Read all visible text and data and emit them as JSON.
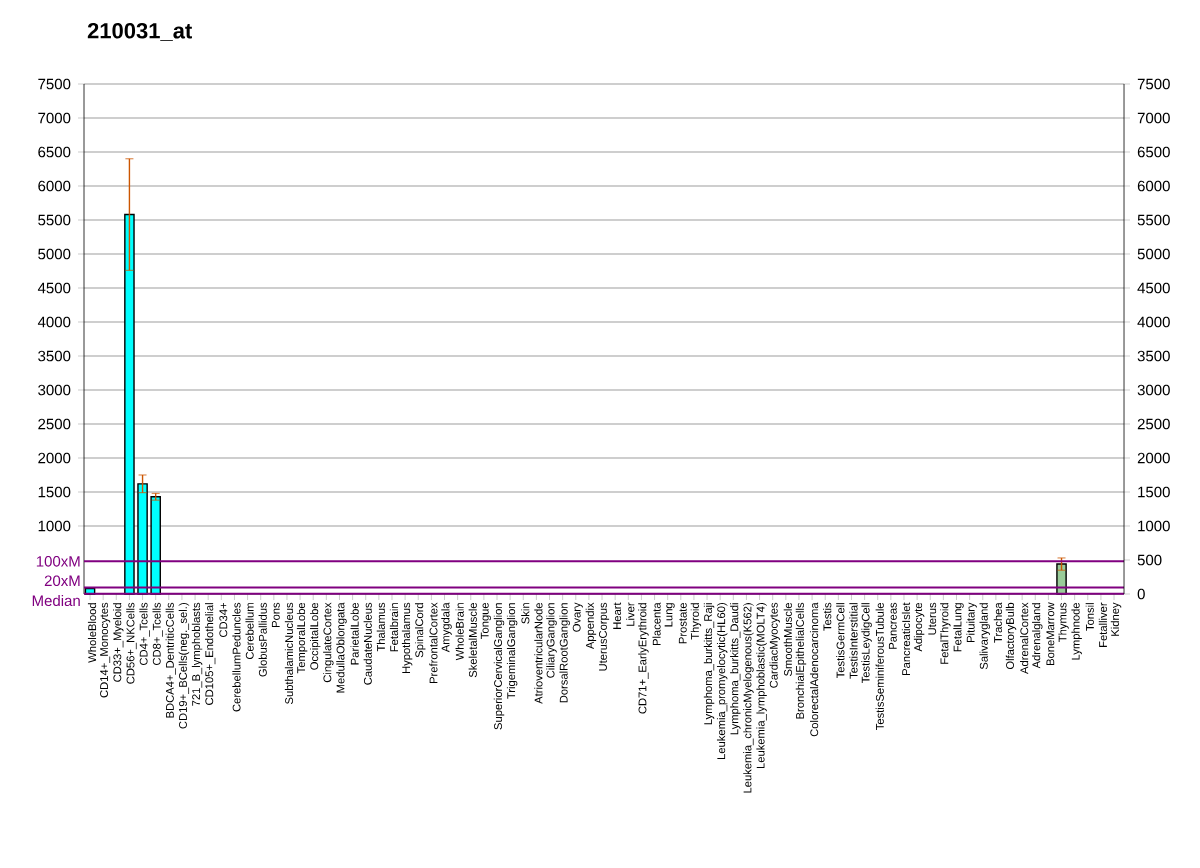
{
  "chart_data": {
    "type": "bar",
    "title": "210031_at",
    "categories": [
      "WholeBlood",
      "CD14+_Monocytes",
      "CD33+_Myeloid",
      "CD56+_NKCells",
      "CD4+_Tcells",
      "CD8+_Tcells",
      "BDCA4+_DentriticCells",
      "CD19+_BCells(neg._sel.)",
      "721_B_lymphoblasts",
      "CD105+_Endothelial",
      "CD34+",
      "CerebellumPeduncles",
      "Cerebellum",
      "GlobusPallidus",
      "Pons",
      "SubthalamicNucleus",
      "TemporalLobe",
      "OccipitalLobe",
      "CingulateCortex",
      "MedullaOblongata",
      "ParietalLobe",
      "CaudateNucleus",
      "Thalamus",
      "Fetalbrain",
      "Hypothalamus",
      "SpinalCord",
      "PrefrontalCortex",
      "Amygdala",
      "WholeBrain",
      "SkeletalMuscle",
      "Tongue",
      "SuperiorCervicalGanglion",
      "TrigeminalGanglion",
      "Skin",
      "AtrioventricularNode",
      "CiliaryGanglion",
      "DorsalRootGanglion",
      "Ovary",
      "Appendix",
      "UterusCorpus",
      "Heart",
      "Liver",
      "CD71+_EarlyErythroid",
      "Placenta",
      "Lung",
      "Prostate",
      "Thyroid",
      "Lymphoma_burkitts_Raji",
      "Leukemia_promyelocytic(HL60)",
      "Lymphoma_burkitts_Daudi",
      "Leukemia_chronicMyelogenous(K562)",
      "Leukemia_lymphoblastic(MOLT4)",
      "CardiacMyocytes",
      "SmoothMuscle",
      "BronchialEpithelialCells",
      "ColorectalAdenocarcinoma",
      "Testis",
      "TestisGermCell",
      "TestisInterstitial",
      "TestisLeydigCell",
      "TestisSeminiferousTubule",
      "Pancreas",
      "PancreaticIslet",
      "Adipocyte",
      "Uterus",
      "FetalThyroid",
      "FetalLung",
      "Pituitary",
      "Salivarygland",
      "Trachea",
      "OlfactoryBulb",
      "AdrenalCortex",
      "Adrenalgland",
      "BoneMarrow",
      "Thymus",
      "Lymphnode",
      "Tonsil",
      "Fetalliver",
      "Kidney"
    ],
    "values": [
      80,
      null,
      null,
      5580,
      1620,
      1430,
      null,
      null,
      null,
      null,
      null,
      null,
      null,
      null,
      null,
      null,
      null,
      null,
      null,
      null,
      null,
      null,
      null,
      null,
      null,
      null,
      null,
      null,
      null,
      null,
      null,
      null,
      null,
      null,
      null,
      null,
      null,
      null,
      null,
      null,
      null,
      null,
      null,
      null,
      null,
      null,
      null,
      null,
      null,
      null,
      null,
      null,
      null,
      null,
      null,
      null,
      null,
      null,
      null,
      null,
      null,
      null,
      null,
      null,
      null,
      null,
      null,
      null,
      null,
      null,
      null,
      null,
      null,
      null,
      440,
      null,
      null,
      null,
      null
    ],
    "errors": [
      null,
      null,
      null,
      820,
      130,
      50,
      null,
      null,
      null,
      null,
      null,
      null,
      null,
      null,
      null,
      null,
      null,
      null,
      null,
      null,
      null,
      null,
      null,
      null,
      null,
      null,
      null,
      null,
      null,
      null,
      null,
      null,
      null,
      null,
      null,
      null,
      null,
      null,
      null,
      null,
      null,
      null,
      null,
      null,
      null,
      null,
      null,
      null,
      null,
      null,
      null,
      null,
      null,
      null,
      null,
      null,
      null,
      null,
      null,
      null,
      null,
      null,
      null,
      null,
      null,
      null,
      null,
      null,
      null,
      null,
      null,
      null,
      null,
      null,
      90,
      null,
      null,
      null,
      null
    ],
    "colors": [
      "#00ffff",
      "#00ffff",
      "#00ffff",
      "#00ffff",
      "#00ffff",
      "#00ffff",
      "#00ffff",
      "#00ffff",
      "#00ffff",
      "#00ffff",
      "#00ffff",
      "#00ffff",
      "#00ffff",
      "#00ffff",
      "#00ffff",
      "#00ffff",
      "#00ffff",
      "#00ffff",
      "#00ffff",
      "#00ffff",
      "#00ffff",
      "#00ffff",
      "#00ffff",
      "#00ffff",
      "#00ffff",
      "#00ffff",
      "#00ffff",
      "#00ffff",
      "#00ffff",
      "#00ffff",
      "#00ffff",
      "#00ffff",
      "#00ffff",
      "#00ffff",
      "#00ffff",
      "#00ffff",
      "#00ffff",
      "#00ffff",
      "#00ffff",
      "#00ffff",
      "#00ffff",
      "#00ffff",
      "#00ffff",
      "#00ffff",
      "#00ffff",
      "#00ffff",
      "#00ffff",
      "#00ffff",
      "#00ffff",
      "#00ffff",
      "#00ffff",
      "#00ffff",
      "#00ffff",
      "#00ffff",
      "#00ffff",
      "#00ffff",
      "#00ffff",
      "#00ffff",
      "#00ffff",
      "#00ffff",
      "#00ffff",
      "#00ffff",
      "#00ffff",
      "#00ffff",
      "#00ffff",
      "#00ffff",
      "#00ffff",
      "#00ffff",
      "#00ffff",
      "#00ffff",
      "#00ffff",
      "#00ffff",
      "#00ffff",
      "#00ffff",
      "#99cc99",
      "#00ffff",
      "#00ffff",
      "#00ffff",
      "#00ffff"
    ],
    "ylim": [
      0,
      7500
    ],
    "yticks": [
      1000,
      1500,
      2000,
      2500,
      3000,
      3500,
      4000,
      4500,
      5000,
      5500,
      6000,
      6500,
      7000,
      7500
    ],
    "y2lim": [
      0,
      7500
    ],
    "y2ticks": [
      0,
      500,
      1000,
      1500,
      2000,
      2500,
      3000,
      3500,
      4000,
      4500,
      5000,
      5500,
      6000,
      6500,
      7000,
      7500
    ],
    "grid": "y",
    "ref_lines": [
      {
        "axis": "y",
        "value": 480,
        "label": "100xM",
        "color": "#800080"
      },
      {
        "axis": "y",
        "value": 96,
        "label": "20xM",
        "color": "#800080"
      },
      {
        "axis": "y",
        "value": 5,
        "label": "Median",
        "color": "#800080"
      }
    ]
  }
}
